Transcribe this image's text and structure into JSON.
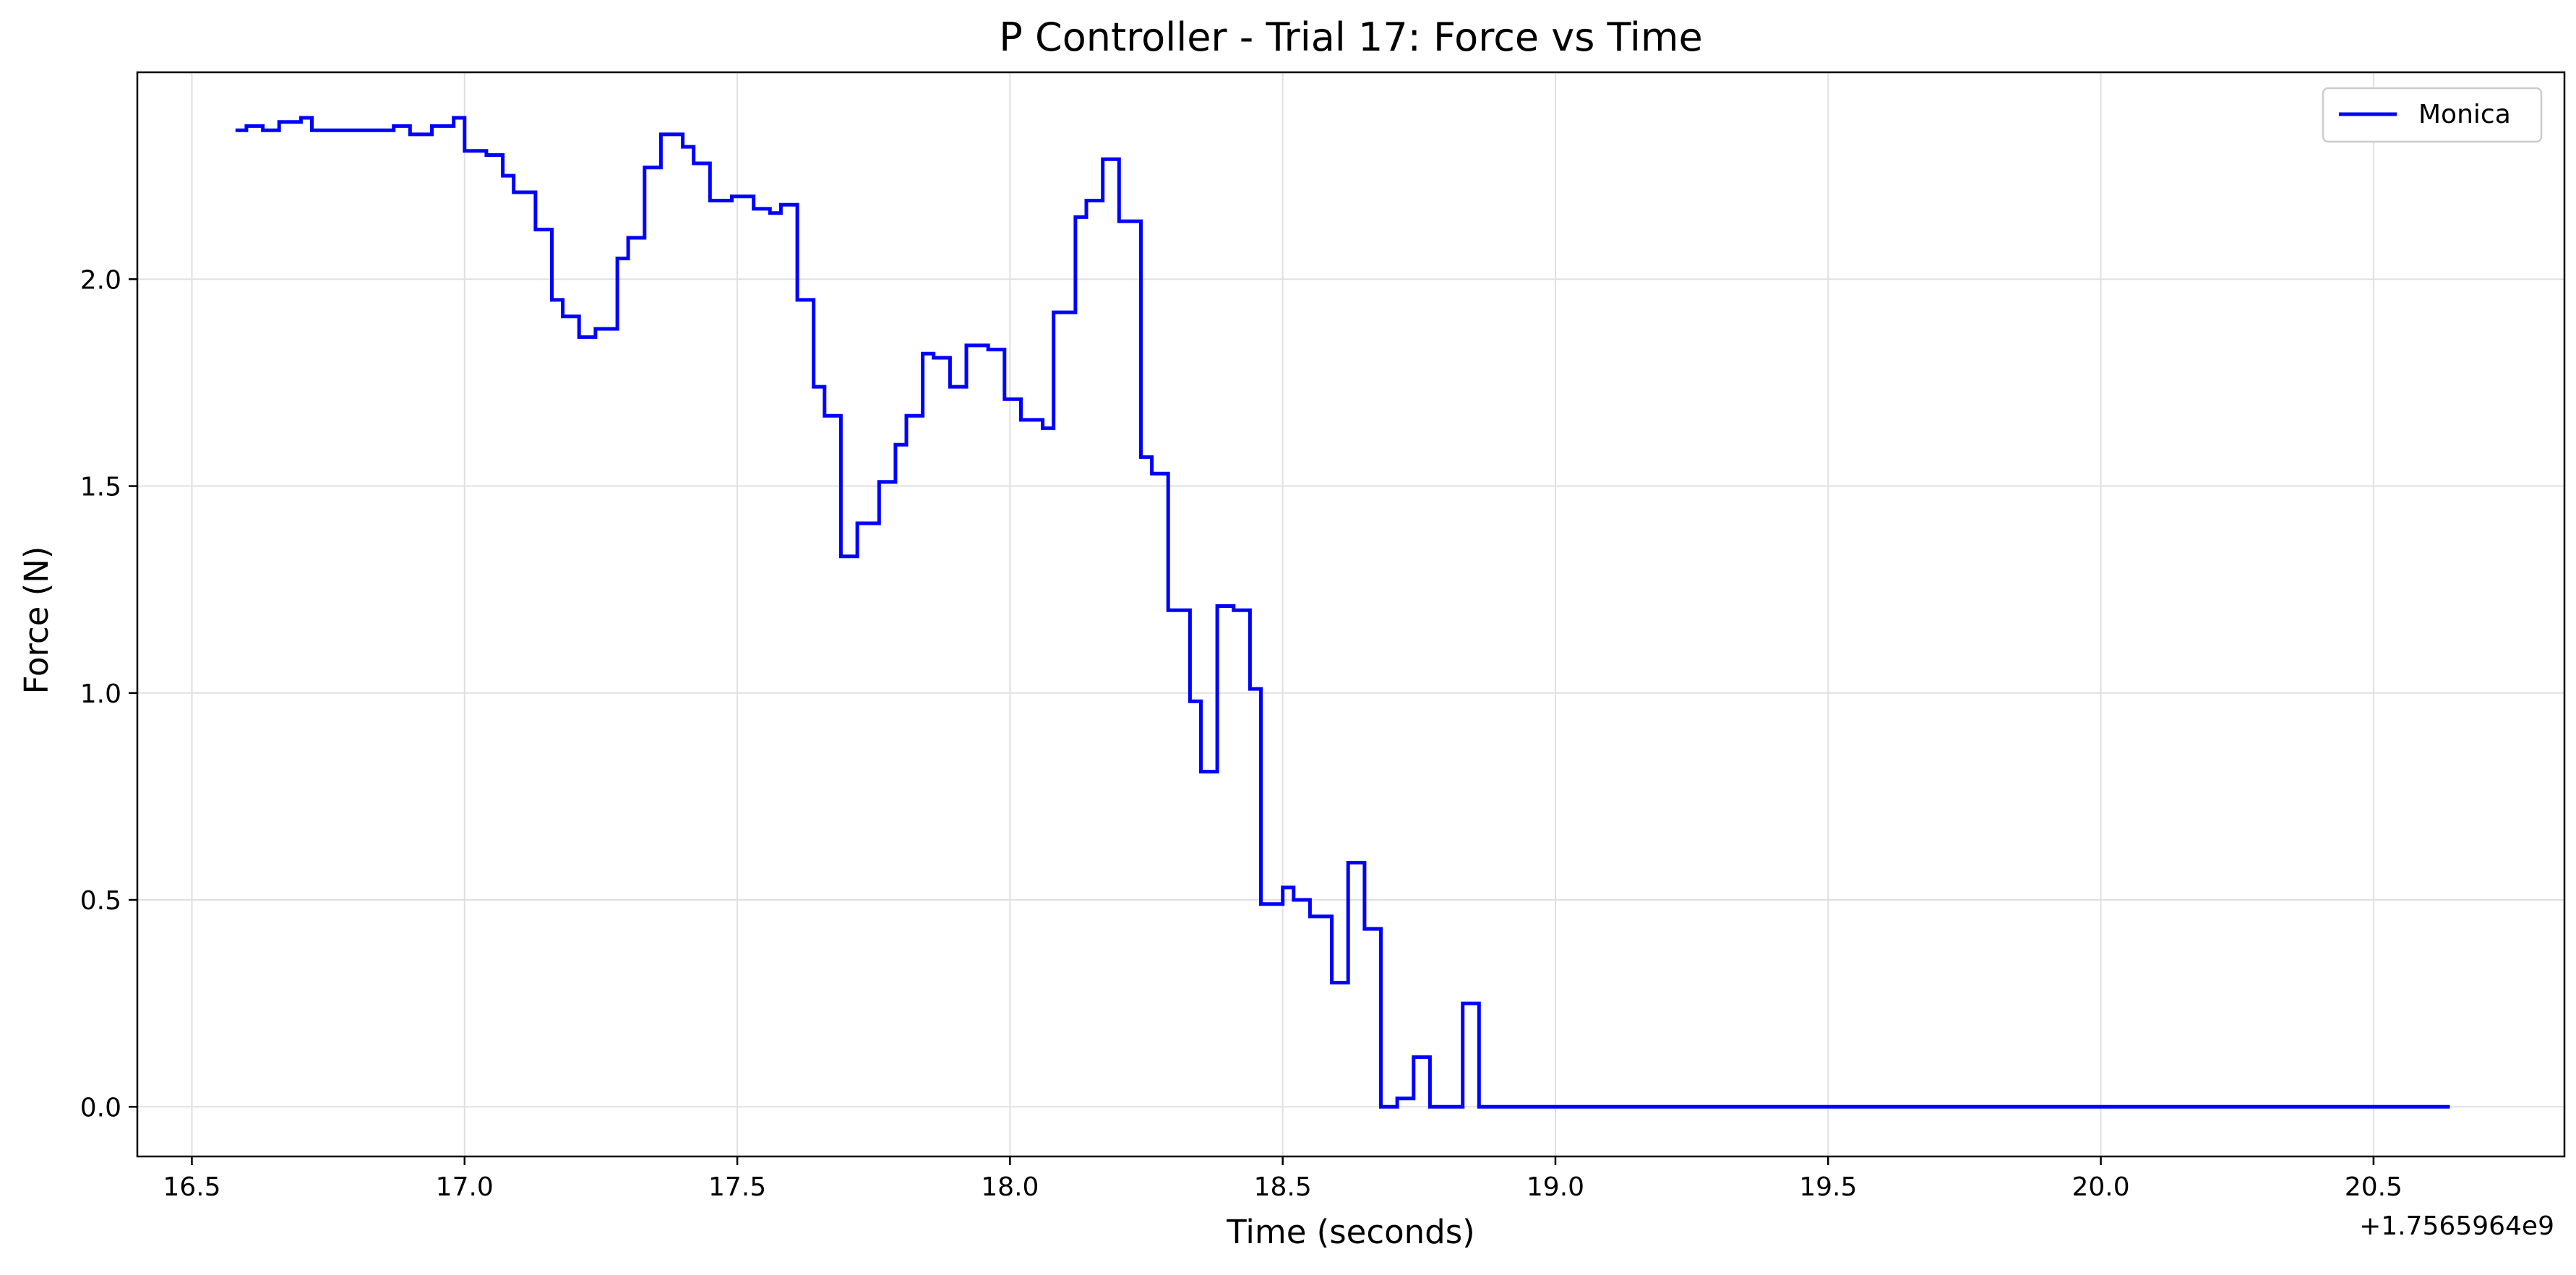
{
  "chart_data": {
    "type": "line",
    "title": "P Controller - Trial 17: Force vs Time",
    "xlabel": "Time (seconds)",
    "ylabel": "Force (N)",
    "x_offset_label": "+1.7565964e9",
    "xlim": [
      16.4,
      20.85
    ],
    "ylim": [
      -0.12,
      2.5
    ],
    "xticks": [
      16.5,
      17.0,
      17.5,
      18.0,
      18.5,
      19.0,
      19.5,
      20.0,
      20.5
    ],
    "xtick_labels": [
      "16.5",
      "17.0",
      "17.5",
      "18.0",
      "18.5",
      "19.0",
      "19.5",
      "20.0",
      "20.5"
    ],
    "yticks": [
      0.0,
      0.5,
      1.0,
      1.5,
      2.0
    ],
    "ytick_labels": [
      "0.0",
      "0.5",
      "1.0",
      "1.5",
      "2.0"
    ],
    "grid": true,
    "legend_position": "top-right",
    "line_style": "steps-post",
    "series": [
      {
        "name": "Monica",
        "color": "#0000ff",
        "x": [
          16.58,
          16.6,
          16.63,
          16.66,
          16.7,
          16.72,
          16.85,
          16.87,
          16.9,
          16.94,
          16.98,
          17.0,
          17.04,
          17.07,
          17.09,
          17.13,
          17.16,
          17.18,
          17.21,
          17.24,
          17.28,
          17.3,
          17.33,
          17.36,
          17.4,
          17.42,
          17.45,
          17.49,
          17.53,
          17.56,
          17.58,
          17.61,
          17.64,
          17.66,
          17.69,
          17.72,
          17.76,
          17.79,
          17.81,
          17.84,
          17.86,
          17.89,
          17.92,
          17.96,
          17.99,
          18.02,
          18.06,
          18.08,
          18.12,
          18.14,
          18.17,
          18.2,
          18.24,
          18.26,
          18.29,
          18.33,
          18.35,
          18.38,
          18.41,
          18.44,
          18.46,
          18.5,
          18.52,
          18.55,
          18.59,
          18.62,
          18.65,
          18.68,
          18.71,
          18.74,
          18.77,
          18.83,
          18.86,
          20.64
        ],
        "y": [
          2.36,
          2.37,
          2.36,
          2.38,
          2.39,
          2.36,
          2.36,
          2.37,
          2.35,
          2.37,
          2.39,
          2.31,
          2.3,
          2.25,
          2.21,
          2.12,
          1.95,
          1.91,
          1.86,
          1.88,
          2.05,
          2.1,
          2.27,
          2.35,
          2.32,
          2.28,
          2.19,
          2.2,
          2.17,
          2.16,
          2.18,
          1.95,
          1.74,
          1.67,
          1.33,
          1.41,
          1.51,
          1.6,
          1.67,
          1.82,
          1.81,
          1.74,
          1.84,
          1.83,
          1.71,
          1.66,
          1.64,
          1.92,
          2.15,
          2.19,
          2.29,
          2.14,
          1.57,
          1.53,
          1.2,
          0.98,
          0.81,
          1.21,
          1.2,
          1.01,
          0.49,
          0.53,
          0.5,
          0.46,
          0.3,
          0.59,
          0.43,
          0.0,
          0.02,
          0.12,
          0.0,
          0.25,
          0.0,
          0.0
        ]
      }
    ]
  }
}
